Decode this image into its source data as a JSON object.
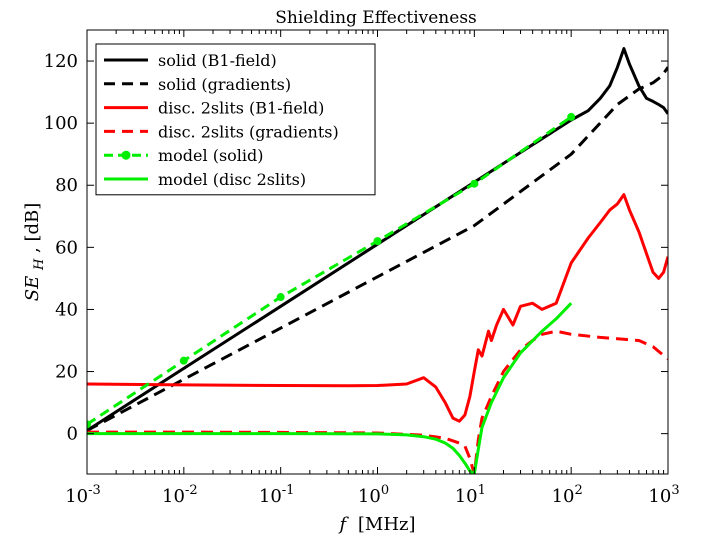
{
  "chart_data": {
    "type": "line",
    "title": "Shielding Effectiveness",
    "xlabel": {
      "var": "f",
      "unit": "[MHz]"
    },
    "ylabel": {
      "var": "SE",
      "sub": "H",
      "unit": ", [dB]"
    },
    "xscale": "log",
    "xlim": [
      0.001,
      1000
    ],
    "ylim": [
      -13,
      130
    ],
    "xticks": [
      {
        "value": 0.001,
        "base": "10",
        "exp": "-3"
      },
      {
        "value": 0.01,
        "base": "10",
        "exp": "-2"
      },
      {
        "value": 0.1,
        "base": "10",
        "exp": "-1"
      },
      {
        "value": 1,
        "base": "10",
        "exp": "0"
      },
      {
        "value": 10,
        "base": "10",
        "exp": "1"
      },
      {
        "value": 100,
        "base": "10",
        "exp": "2"
      },
      {
        "value": 1000,
        "base": "10",
        "exp": "3"
      }
    ],
    "yticks": [
      {
        "value": 0,
        "label": "0"
      },
      {
        "value": 20,
        "label": "20"
      },
      {
        "value": 40,
        "label": "40"
      },
      {
        "value": 60,
        "label": "60"
      },
      {
        "value": 80,
        "label": "80"
      },
      {
        "value": 100,
        "label": "100"
      },
      {
        "value": 120,
        "label": "120"
      }
    ],
    "grid": false,
    "legend_position": "top-left",
    "series": [
      {
        "name": "solid (B1-field)",
        "color": "#000000",
        "style": "solid",
        "x": [
          0.001,
          0.01,
          0.1,
          1,
          10,
          50,
          100,
          150,
          200,
          250,
          300,
          350,
          400,
          500,
          600,
          700,
          800,
          900,
          1000
        ],
        "y": [
          1,
          21,
          41,
          61,
          81,
          95,
          101,
          104,
          108,
          112,
          118,
          124,
          119,
          112,
          108,
          107,
          106,
          105,
          103
        ]
      },
      {
        "name": "solid (gradients)",
        "color": "#000000",
        "style": "dashed",
        "x": [
          0.001,
          0.01,
          0.1,
          1,
          10,
          100,
          300,
          500,
          700,
          850,
          1000
        ],
        "y": [
          1,
          17.5,
          34,
          50.5,
          67,
          90,
          106,
          111,
          113,
          115,
          118
        ]
      },
      {
        "name": "disc. 2slits (B1-field)",
        "color": "#ff0000",
        "style": "solid",
        "x": [
          0.001,
          0.01,
          0.1,
          0.5,
          1,
          2,
          3,
          4,
          5,
          6,
          7,
          8,
          9,
          10,
          11,
          12,
          14,
          15,
          17,
          20,
          25,
          30,
          40,
          50,
          70,
          100,
          150,
          200,
          250,
          300,
          350,
          400,
          500,
          600,
          700,
          800,
          900,
          1000
        ],
        "y": [
          16,
          15.7,
          15.5,
          15.4,
          15.5,
          16,
          18,
          15,
          10,
          5,
          4,
          6,
          12,
          20,
          27,
          25,
          33,
          30,
          35,
          40,
          35,
          41,
          42,
          40,
          42,
          55,
          63,
          68,
          72,
          74,
          77,
          72,
          65,
          58,
          52,
          50,
          52,
          57
        ]
      },
      {
        "name": "disc. 2slits (gradients)",
        "color": "#ff0000",
        "style": "dashed",
        "x": [
          0.001,
          0.01,
          0.1,
          1,
          3,
          5,
          7,
          8,
          9,
          10,
          11,
          12,
          15,
          20,
          30,
          40,
          50,
          70,
          100,
          200,
          500,
          700,
          1000
        ],
        "y": [
          0.5,
          0.5,
          0.4,
          0.2,
          -0.5,
          -1.5,
          -3,
          -4,
          -8,
          -13,
          -2,
          5,
          12,
          20,
          27,
          30,
          32,
          33,
          32,
          31,
          30,
          28,
          24
        ]
      },
      {
        "name": "model (solid)",
        "color": "#00ee00",
        "style": "dashed-dot",
        "x": [
          0.001,
          0.01,
          0.1,
          1,
          10,
          100
        ],
        "y": [
          3,
          23.5,
          44,
          62,
          80.5,
          102
        ]
      },
      {
        "name": "model (disc 2slits)",
        "color": "#00ee00",
        "style": "solid",
        "x": [
          0.001,
          0.01,
          0.1,
          1,
          2,
          3,
          4,
          5,
          6,
          7,
          8,
          9,
          10,
          11,
          12,
          15,
          20,
          30,
          50,
          70,
          100
        ],
        "y": [
          0,
          0,
          0,
          -0.1,
          -0.4,
          -1,
          -1.8,
          -3,
          -4.7,
          -7,
          -9.5,
          -12,
          -13,
          -5,
          2,
          10,
          18,
          26,
          33,
          37,
          42
        ]
      }
    ]
  }
}
